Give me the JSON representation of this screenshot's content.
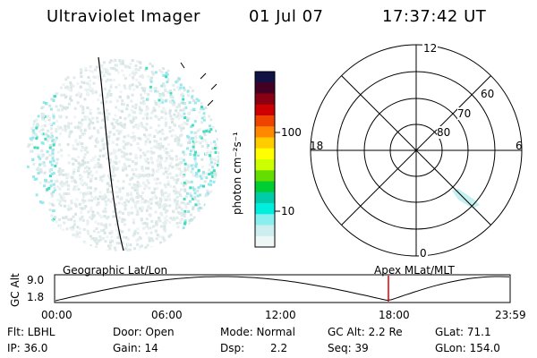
{
  "header": {
    "instrument": "Ultraviolet Imager",
    "date": "01 Jul 07",
    "time": "17:37:42 UT"
  },
  "colorbar": {
    "unit_label": "photon cm⁻²s⁻¹",
    "ticks": [
      "100",
      "10"
    ]
  },
  "polar": {
    "mlt_labels": {
      "top": "12",
      "left": "18",
      "right": "6",
      "bottom": "0"
    },
    "lat_labels": [
      "60",
      "70",
      "80"
    ]
  },
  "timeline": {
    "left_title": "Geographic Lat/Lon",
    "right_title": "Apex MLat/MLT",
    "y_label": "GC Alt",
    "y_ticks": [
      "9.0",
      "1.8"
    ],
    "x_ticks": [
      "00:00",
      "06:00",
      "12:00",
      "18:00",
      "23:59"
    ],
    "marker_color": "#e00000"
  },
  "info": {
    "flt": "Flt: LBHL",
    "ip": "IP: 36.0",
    "door": "Door: Open",
    "gain": "Gain: 14",
    "mode": "Mode: Normal",
    "dsp_label": "Dsp:",
    "dsp_value": "2.2",
    "gc_alt": "GC Alt: 2.2 Re",
    "seq": "Seq: 39",
    "glat": "GLat:  71.1",
    "glon": "GLon: 154.0"
  },
  "colors": {
    "scale": [
      "#111144",
      "#440022",
      "#880011",
      "#cc0000",
      "#ee4400",
      "#ff8800",
      "#ffcc00",
      "#ffff00",
      "#ccff00",
      "#66dd00",
      "#00cc33",
      "#00ccaa",
      "#00eedd",
      "#88eeee",
      "#cceeee",
      "#eef6f6"
    ]
  }
}
